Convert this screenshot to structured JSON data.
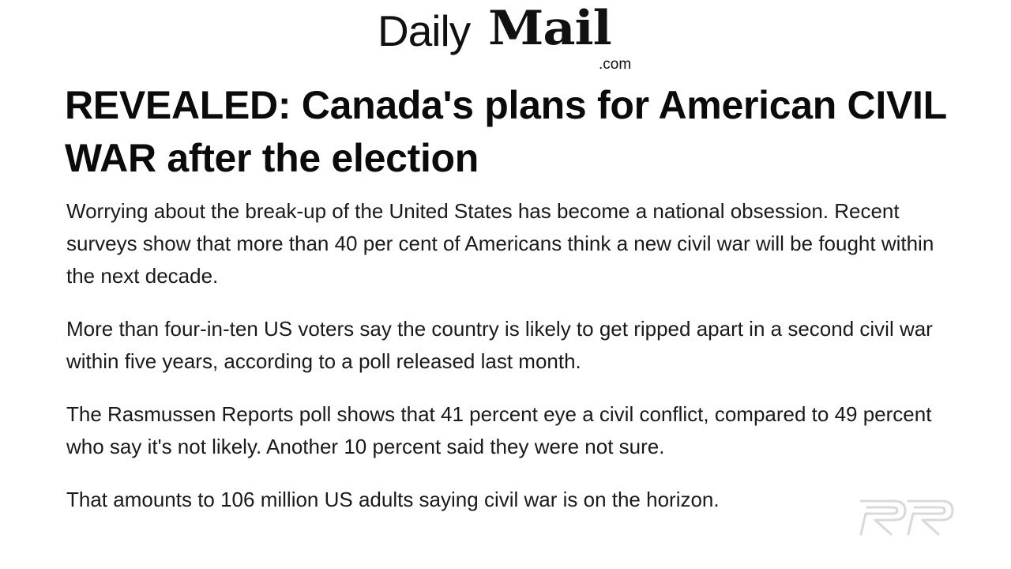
{
  "masthead": {
    "daily": "Daily",
    "mail": "Mail",
    "domain": ".com"
  },
  "headline": "REVEALED: Canada's plans for American CIVIL WAR after the election",
  "paragraphs": [
    "Worrying about the break-up of the United States has become a national obsession. Recent surveys show that more than 40 per cent of Americans think a new civil war will be fought within the next decade.",
    "More than four-in-ten US voters say the country is likely to get ripped apart in a second civil war within five years, according to a poll released last month.",
    "The Rasmussen Reports poll shows that 41 percent eye a civil conflict, compared to 49 percent who say it's not likely. Another 10 percent said they were not sure.",
    "That amounts to 106 million US adults saying civil war is on the horizon."
  ],
  "watermark": {
    "icon": "rr-logo-icon",
    "color": "#d9d9d9"
  }
}
